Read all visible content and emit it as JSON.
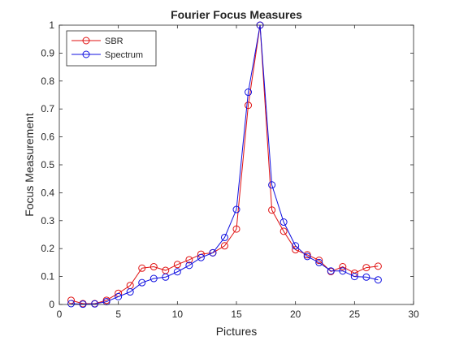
{
  "chart_data": {
    "type": "line",
    "title": "Fourier Focus Measures",
    "xlabel": "Pictures",
    "ylabel": "Focus Measurement",
    "xlim": [
      0,
      30
    ],
    "ylim": [
      0,
      1
    ],
    "x_ticks": [
      0,
      5,
      10,
      15,
      20,
      25,
      30
    ],
    "y_ticks": [
      0,
      0.1,
      0.2,
      0.3,
      0.4,
      0.5,
      0.6,
      0.7,
      0.8,
      0.9,
      1
    ],
    "grid": false,
    "legend_position": "top-left",
    "x": [
      1,
      2,
      3,
      4,
      5,
      6,
      7,
      8,
      9,
      10,
      11,
      12,
      13,
      14,
      15,
      16,
      17,
      18,
      19,
      20,
      21,
      22,
      23,
      24,
      25,
      26,
      27
    ],
    "series": [
      {
        "name": "SBR",
        "color": "#e01010",
        "marker": "circle",
        "values": [
          0.015,
          0.003,
          0.003,
          0.015,
          0.04,
          0.068,
          0.13,
          0.135,
          0.122,
          0.143,
          0.16,
          0.18,
          0.185,
          0.21,
          0.27,
          0.713,
          1.0,
          0.338,
          0.262,
          0.196,
          0.178,
          0.158,
          0.118,
          0.135,
          0.112,
          0.132,
          0.137
        ]
      },
      {
        "name": "Spectrum",
        "color": "#1010e0",
        "marker": "circle",
        "values": [
          0.003,
          0.001,
          0.002,
          0.01,
          0.028,
          0.045,
          0.078,
          0.093,
          0.098,
          0.117,
          0.14,
          0.168,
          0.185,
          0.24,
          0.34,
          0.76,
          1.0,
          0.428,
          0.295,
          0.21,
          0.172,
          0.15,
          0.12,
          0.12,
          0.1,
          0.098,
          0.088
        ]
      }
    ]
  }
}
